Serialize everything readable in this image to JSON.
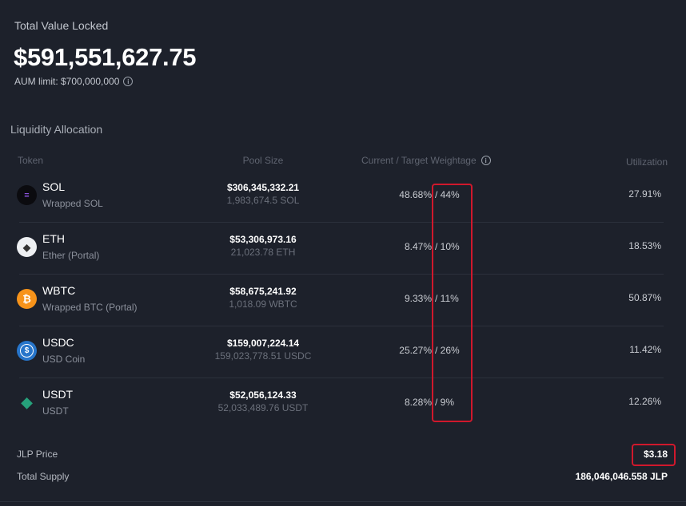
{
  "tvl": {
    "label": "Total Value Locked",
    "value": "$591,551,627.75",
    "aum_limit": "AUM limit: $700,000,000"
  },
  "allocation": {
    "title": "Liquidity Allocation",
    "headers": {
      "token": "Token",
      "pool_size": "Pool Size",
      "weightage": "Current / Target Weightage",
      "utilization": "Utilization"
    },
    "rows": [
      {
        "symbol": "SOL",
        "name": "Wrapped SOL",
        "usd": "$306,345,332.21",
        "amount": "1,983,674.5 SOL",
        "current": "48.68%",
        "target": "/ 44%",
        "utilization": "27.91%",
        "icon": "solana-icon"
      },
      {
        "symbol": "ETH",
        "name": "Ether (Portal)",
        "usd": "$53,306,973.16",
        "amount": "21,023.78 ETH",
        "current": "8.47%",
        "target": "/ 10%",
        "utilization": "18.53%",
        "icon": "ethereum-icon"
      },
      {
        "symbol": "WBTC",
        "name": "Wrapped BTC (Portal)",
        "usd": "$58,675,241.92",
        "amount": "1,018.09 WBTC",
        "current": "9.33%",
        "target": "/ 11%",
        "utilization": "50.87%",
        "icon": "bitcoin-icon"
      },
      {
        "symbol": "USDC",
        "name": "USD Coin",
        "usd": "$159,007,224.14",
        "amount": "159,023,778.51 USDC",
        "current": "25.27%",
        "target": "/ 26%",
        "utilization": "11.42%",
        "icon": "usdc-icon"
      },
      {
        "symbol": "USDT",
        "name": "USDT",
        "usd": "$52,056,124.33",
        "amount": "52,033,489.76 USDT",
        "current": "8.28%",
        "target": "/ 9%",
        "utilization": "12.26%",
        "icon": "tether-icon"
      }
    ]
  },
  "footer": {
    "jlp_price_label": "JLP Price",
    "jlp_price": "$3.18",
    "total_supply_label": "Total Supply",
    "total_supply": "186,046,046.558 JLP"
  },
  "colors": {
    "background": "#1d212b",
    "highlight": "#d0182c"
  }
}
